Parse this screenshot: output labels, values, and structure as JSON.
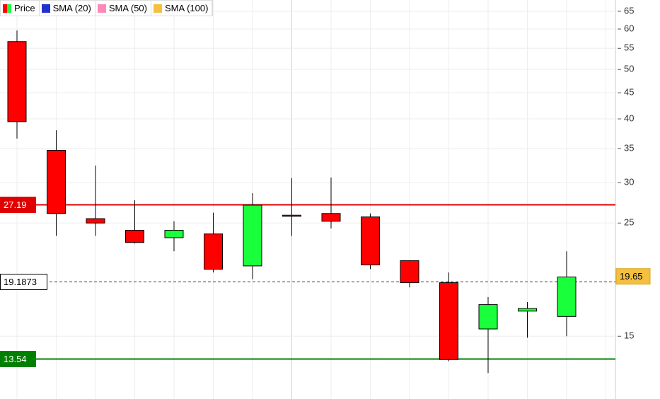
{
  "chart_data": {
    "type": "candlestick",
    "legend": [
      {
        "name": "Price",
        "color": "#e00000"
      },
      {
        "name": "SMA (20)",
        "color": "#2233cc"
      },
      {
        "name": "SMA (50)",
        "color": "#ff88bb"
      },
      {
        "name": "SMA (100)",
        "color": "#f5c040"
      }
    ],
    "up_color": "#1aff3c",
    "down_color": "#ff0000",
    "open": [
      56.7,
      34.7,
      25.5,
      24.2,
      23.4,
      23.8,
      20.6,
      25.9,
      26.1,
      25.7,
      21.1,
      19.1,
      15.5,
      16.8,
      16.4
    ],
    "high": [
      59.6,
      38.0,
      32.4,
      27.7,
      25.2,
      26.2,
      28.6,
      30.6,
      30.7,
      26.1,
      21.1,
      20.0,
      17.9,
      17.5,
      22.0
    ],
    "low": [
      36.6,
      23.6,
      23.6,
      22.8,
      22.0,
      20.0,
      19.4,
      23.6,
      24.4,
      20.3,
      18.7,
      13.4,
      12.7,
      14.9,
      15.0
    ],
    "close": [
      39.5,
      26.1,
      25.0,
      22.9,
      24.2,
      20.3,
      27.1,
      25.8,
      25.2,
      20.7,
      19.1,
      13.5,
      17.3,
      17.0,
      19.6
    ],
    "log_scale": true,
    "ylim": [
      11.3,
      68.4
    ],
    "yticks": [
      65,
      60,
      55,
      50,
      45,
      40,
      35,
      30,
      25,
      15
    ],
    "grid": true,
    "levels": [
      {
        "value": 27.19,
        "color": "#e00000",
        "style": "solid"
      },
      {
        "value": 19.1873,
        "color": "#333333",
        "style": "dashed"
      },
      {
        "value": 13.54,
        "color": "#008000",
        "style": "solid"
      }
    ],
    "last_price": 19.65,
    "last_price_color": "#f5c040"
  }
}
